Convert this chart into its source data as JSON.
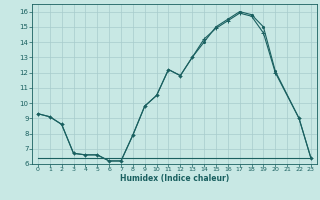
{
  "xlabel": "Humidex (Indice chaleur)",
  "xlim": [
    -0.5,
    23.5
  ],
  "ylim": [
    6,
    16.5
  ],
  "yticks": [
    6,
    7,
    8,
    9,
    10,
    11,
    12,
    13,
    14,
    15,
    16
  ],
  "xticks": [
    0,
    1,
    2,
    3,
    4,
    5,
    6,
    7,
    8,
    9,
    10,
    11,
    12,
    13,
    14,
    15,
    16,
    17,
    18,
    19,
    20,
    21,
    22,
    23
  ],
  "bg_color": "#c8e8e4",
  "grid_color": "#a8cccc",
  "line_color": "#1a6060",
  "line1_x": [
    0,
    1,
    2,
    3,
    4,
    5,
    6,
    7,
    8,
    9,
    10,
    11,
    12,
    13,
    14,
    15,
    16,
    17,
    18,
    19,
    20,
    22,
    23
  ],
  "line1_y": [
    9.3,
    9.1,
    8.6,
    6.7,
    6.6,
    6.6,
    6.2,
    6.2,
    7.9,
    9.8,
    10.5,
    12.2,
    11.8,
    13.0,
    14.0,
    15.0,
    15.5,
    16.0,
    15.8,
    15.0,
    12.1,
    9.0,
    6.4
  ],
  "line2_x": [
    0,
    1,
    2,
    3,
    4,
    5,
    6,
    7,
    8,
    9,
    10,
    11,
    12,
    13,
    14,
    15,
    16,
    17,
    18,
    19,
    20,
    22,
    23
  ],
  "line2_y": [
    9.3,
    9.1,
    8.6,
    6.7,
    6.6,
    6.6,
    6.2,
    6.2,
    7.9,
    9.8,
    10.5,
    12.2,
    11.8,
    13.0,
    14.2,
    14.9,
    15.4,
    15.9,
    15.7,
    14.6,
    12.0,
    9.0,
    6.4
  ],
  "line3_x": [
    0,
    1,
    2,
    3,
    4,
    5,
    6,
    7,
    8,
    9,
    10,
    11,
    12,
    13,
    14,
    15,
    16,
    17,
    18,
    19,
    20,
    21,
    22,
    23
  ],
  "line3_y": [
    6.4,
    6.4,
    6.4,
    6.4,
    6.4,
    6.4,
    6.4,
    6.4,
    6.4,
    6.4,
    6.4,
    6.4,
    6.4,
    6.4,
    6.4,
    6.4,
    6.4,
    6.4,
    6.4,
    6.4,
    6.4,
    6.4,
    6.4,
    6.4
  ]
}
